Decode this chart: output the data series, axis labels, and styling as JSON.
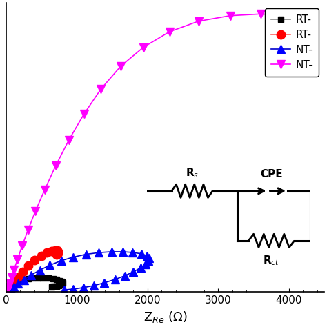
{
  "series": [
    {
      "label": "RT-",
      "color": "#000000",
      "line_color": "#888888",
      "marker": "s",
      "markersize": 6,
      "x": [
        5,
        10,
        20,
        35,
        55,
        80,
        110,
        150,
        195,
        250,
        310,
        375,
        445,
        520,
        595,
        660,
        715,
        755,
        780,
        795,
        800,
        795,
        780,
        760,
        740,
        715,
        690,
        665,
        645
      ],
      "y": [
        3,
        8,
        18,
        35,
        58,
        88,
        120,
        157,
        192,
        220,
        240,
        253,
        258,
        257,
        250,
        238,
        224,
        208,
        193,
        178,
        164,
        150,
        138,
        127,
        118,
        110,
        104,
        99,
        96
      ]
    },
    {
      "label": "RT-",
      "color": "#ff0000",
      "line_color": "#ff6060",
      "marker": "o",
      "markersize": 9,
      "x": [
        5,
        10,
        20,
        40,
        70,
        110,
        165,
        235,
        315,
        405,
        495,
        575,
        640,
        690,
        720,
        735,
        730,
        710
      ],
      "y": [
        5,
        12,
        28,
        60,
        110,
        175,
        260,
        365,
        475,
        575,
        655,
        710,
        740,
        750,
        745,
        728,
        705,
        680
      ]
    },
    {
      "label": "NT-",
      "color": "#0000ff",
      "line_color": "#0000cc",
      "marker": "^",
      "markersize": 9,
      "x": [
        5,
        15,
        35,
        65,
        110,
        170,
        250,
        350,
        475,
        620,
        780,
        950,
        1130,
        1310,
        1490,
        1650,
        1790,
        1910,
        1990,
        2020,
        2010,
        1970,
        1900,
        1800,
        1680,
        1540,
        1390,
        1240,
        1090,
        950,
        820
      ],
      "y": [
        5,
        12,
        28,
        55,
        95,
        150,
        220,
        305,
        395,
        485,
        565,
        630,
        680,
        710,
        725,
        725,
        713,
        690,
        656,
        612,
        560,
        500,
        435,
        365,
        295,
        228,
        168,
        118,
        80,
        55,
        40
      ]
    },
    {
      "label": "NT-",
      "color": "#ff00ff",
      "line_color": "#ff00ff",
      "marker": "v",
      "markersize": 9,
      "x": [
        5,
        10,
        18,
        30,
        50,
        75,
        110,
        160,
        225,
        310,
        415,
        545,
        700,
        885,
        1100,
        1340,
        1620,
        1940,
        2310,
        2720,
        3170,
        3600,
        3960,
        4200,
        4350
      ],
      "y": [
        8,
        20,
        45,
        90,
        160,
        260,
        400,
        590,
        830,
        1120,
        1460,
        1840,
        2270,
        2730,
        3200,
        3650,
        4060,
        4400,
        4680,
        4870,
        4970,
        5000,
        4980,
        4940,
        4900
      ]
    }
  ],
  "xlabel": "Z$_{Re}$ (Ω)",
  "xlim": [
    0,
    4500
  ],
  "ylim": [
    0,
    5200
  ],
  "xticks": [
    0,
    1000,
    2000,
    3000,
    4000
  ],
  "yticks_visible": false,
  "axis_fontsize": 13,
  "tick_fontsize": 11,
  "legend_fontsize": 11,
  "background": "#ffffff"
}
